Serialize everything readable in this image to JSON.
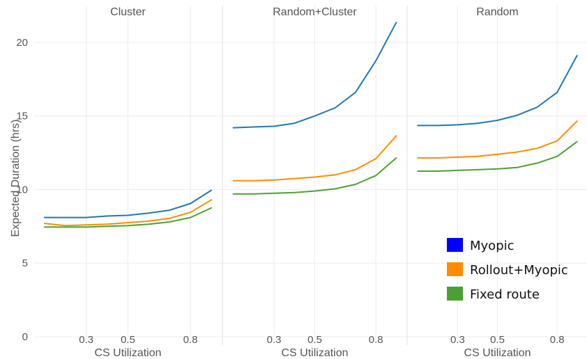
{
  "chart_data": {
    "type": "line",
    "ylabel": "Expected Duration (hrs)",
    "xlabel": "CS Utilization",
    "ylim": [
      0,
      22.5
    ],
    "xlim": [
      0.05,
      0.95
    ],
    "yticks": [
      0,
      5,
      10,
      15,
      20
    ],
    "xticks": [
      0.3,
      0.5,
      0.8
    ],
    "grid": true,
    "legend_position": "bottom-right",
    "x": [
      0.1,
      0.2,
      0.3,
      0.4,
      0.5,
      0.6,
      0.7,
      0.8,
      0.9
    ],
    "legend": [
      {
        "name": "Myopic",
        "color": "#0000FF"
      },
      {
        "name": "Rollout+Myopic",
        "color": "#FF8C00"
      },
      {
        "name": "Fixed route",
        "color": "#4CA033"
      }
    ],
    "panels": [
      {
        "title": "Cluster",
        "series": [
          {
            "name": "Myopic",
            "color": "#1F77B4",
            "values": [
              8.1,
              8.1,
              8.1,
              8.2,
              8.25,
              8.4,
              8.6,
              9.05,
              9.95
            ]
          },
          {
            "name": "Rollout+Myopic",
            "color": "#FF8C00",
            "values": [
              7.7,
              7.55,
              7.6,
              7.65,
              7.75,
              7.85,
              8.05,
              8.45,
              9.3
            ]
          },
          {
            "name": "Fixed route",
            "color": "#4CA033",
            "values": [
              7.45,
              7.45,
              7.45,
              7.5,
              7.55,
              7.65,
              7.8,
              8.1,
              8.75
            ]
          }
        ]
      },
      {
        "title": "Random+Cluster",
        "series": [
          {
            "name": "Myopic",
            "color": "#1F77B4",
            "values": [
              14.2,
              14.25,
              14.3,
              14.5,
              15.0,
              15.55,
              16.6,
              18.75,
              21.35
            ]
          },
          {
            "name": "Rollout+Myopic",
            "color": "#FF8C00",
            "values": [
              10.6,
              10.6,
              10.65,
              10.75,
              10.85,
              11.0,
              11.35,
              12.1,
              13.65
            ]
          },
          {
            "name": "Fixed route",
            "color": "#4CA033",
            "values": [
              9.7,
              9.7,
              9.75,
              9.8,
              9.9,
              10.05,
              10.35,
              10.95,
              12.15
            ]
          }
        ]
      },
      {
        "title": "Random",
        "series": [
          {
            "name": "Myopic",
            "color": "#1F77B4",
            "values": [
              14.35,
              14.35,
              14.4,
              14.5,
              14.7,
              15.05,
              15.6,
              16.6,
              19.1
            ]
          },
          {
            "name": "Rollout+Myopic",
            "color": "#FF8C00",
            "values": [
              12.15,
              12.15,
              12.2,
              12.25,
              12.4,
              12.55,
              12.8,
              13.3,
              14.65
            ]
          },
          {
            "name": "Fixed route",
            "color": "#4CA033",
            "values": [
              11.25,
              11.25,
              11.3,
              11.35,
              11.4,
              11.5,
              11.8,
              12.25,
              13.25
            ]
          }
        ]
      }
    ]
  }
}
